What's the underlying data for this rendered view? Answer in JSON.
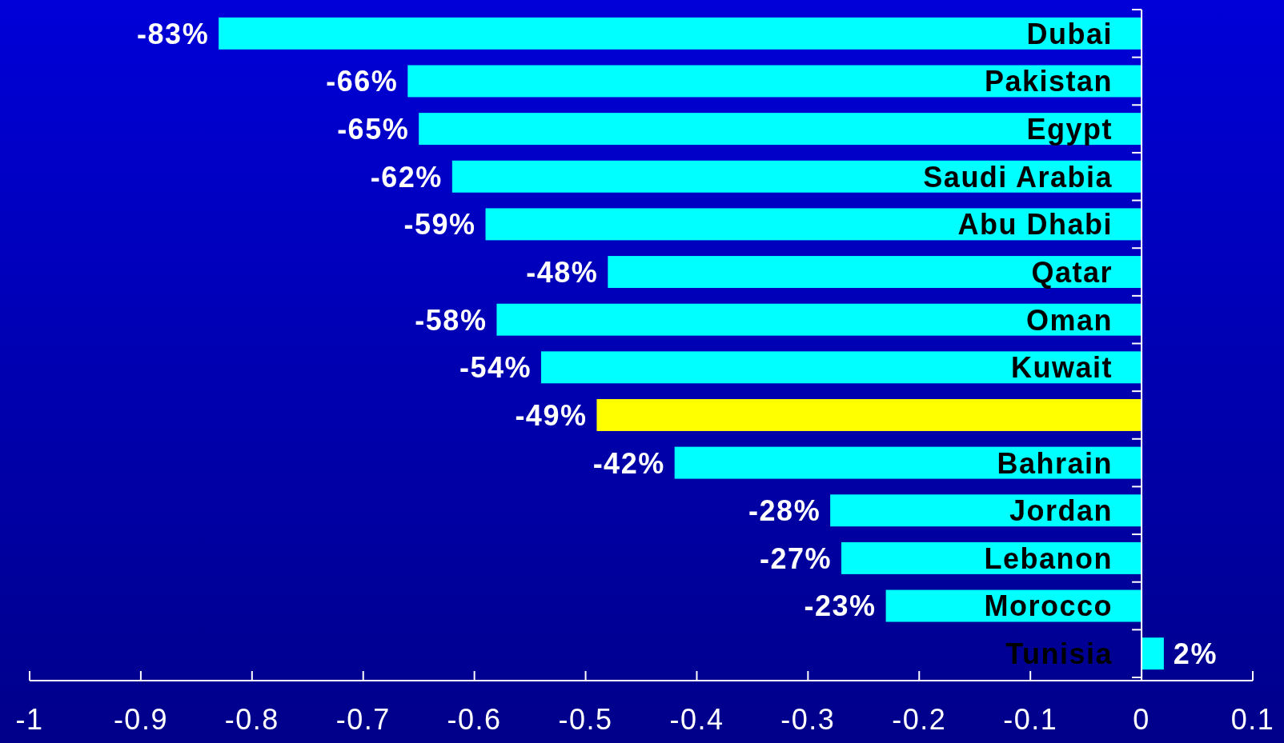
{
  "chart_data": {
    "type": "bar",
    "orientation": "horizontal",
    "categories": [
      "Dubai",
      "Pakistan",
      "Egypt",
      "Saudi Arabia",
      "Abu Dhabi",
      "Qatar",
      "Oman",
      "Kuwait",
      null,
      "Bahrain",
      "Jordan",
      "Lebanon",
      "Morocco",
      "Tunisia"
    ],
    "values": [
      -0.83,
      -0.66,
      -0.65,
      -0.62,
      -0.59,
      -0.48,
      -0.58,
      -0.54,
      -0.49,
      -0.42,
      -0.28,
      -0.27,
      -0.23,
      0.02
    ],
    "value_labels": [
      "-83%",
      "-66%",
      "-65%",
      "-62%",
      "-59%",
      "-48%",
      "-58%",
      "-54%",
      "-49%",
      "-42%",
      "-28%",
      "-27%",
      "-23%",
      "2%"
    ],
    "colors": [
      "#00ffff",
      "#00ffff",
      "#00ffff",
      "#00ffff",
      "#00ffff",
      "#00ffff",
      "#00ffff",
      "#00ffff",
      "#ffff00",
      "#00ffff",
      "#00ffff",
      "#00ffff",
      "#00ffff",
      "#00ffff"
    ],
    "xlim": [
      -1,
      0.1
    ],
    "xticks": [
      -1,
      -0.9,
      -0.8,
      -0.7,
      -0.6,
      -0.5,
      -0.4,
      -0.3,
      -0.2,
      -0.1,
      0,
      0.1
    ],
    "grid": false
  }
}
